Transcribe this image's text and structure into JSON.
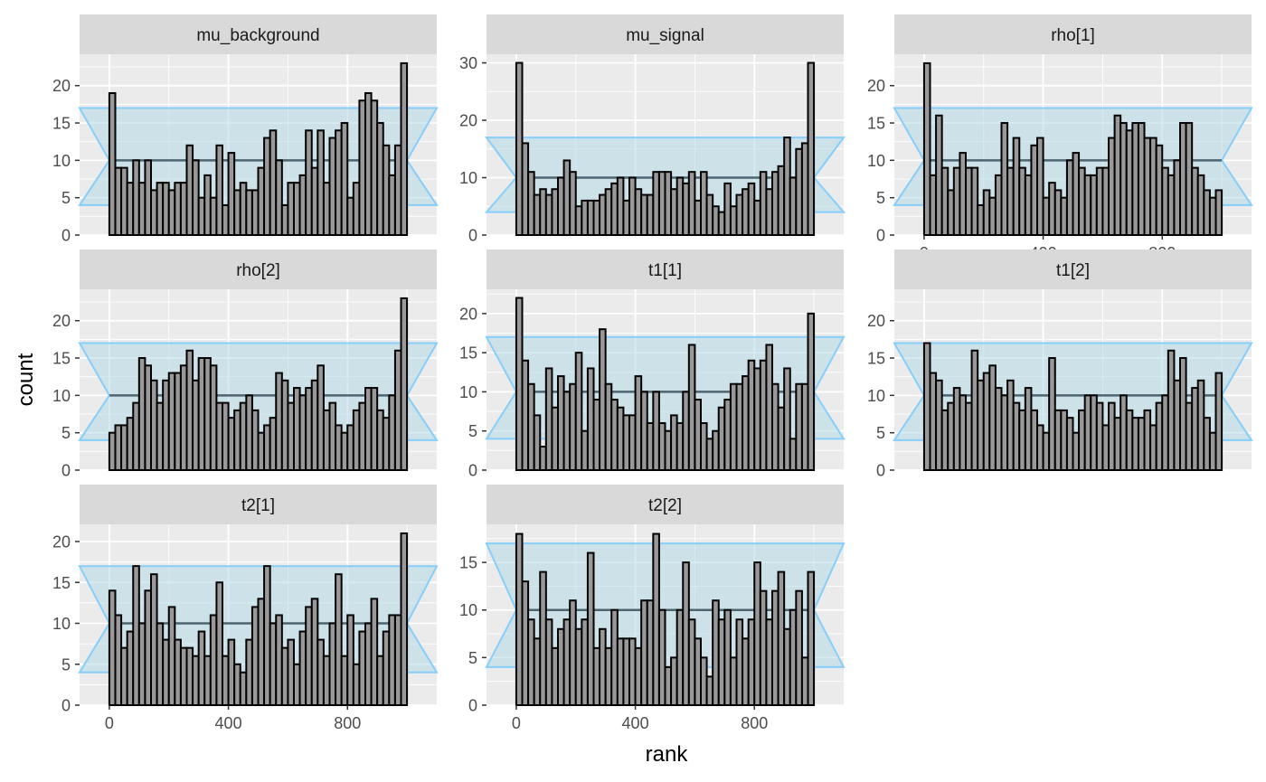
{
  "chart_data": {
    "type": "bar",
    "xlabel": "rank",
    "ylabel": "count",
    "bins": 50,
    "bin_width": 20,
    "xlim": [
      -100,
      1100
    ],
    "x_ticks": [
      "0",
      "400",
      "800"
    ],
    "x_tick_values": [
      0,
      400,
      800
    ],
    "reference": {
      "expected": 10,
      "band_low": 4,
      "band_high": 17,
      "fill": "#add8e6",
      "line": "#87cefa",
      "center_line": "#4d6570"
    },
    "bar_fill": "#999999",
    "bar_stroke": "#000000",
    "panel_bg": "#ebebeb",
    "strip_bg": "#d9d9d9",
    "panels": [
      {
        "title": "mu_background",
        "ylim": [
          0,
          24.2
        ],
        "y_ticks": [
          0,
          5,
          10,
          15,
          20
        ],
        "counts": [
          19,
          9,
          9,
          7,
          10,
          7,
          10,
          6,
          7,
          7,
          6,
          7,
          7,
          12,
          10,
          5,
          8,
          5,
          12,
          4,
          11,
          6,
          7,
          6,
          6,
          9,
          13,
          14,
          10,
          4,
          7,
          7,
          8,
          14,
          9,
          14,
          7,
          13,
          14,
          15,
          5,
          7,
          18,
          19,
          18,
          15,
          12,
          8,
          12,
          23
        ]
      },
      {
        "title": "mu_signal",
        "ylim": [
          0,
          31.5
        ],
        "y_ticks": [
          0,
          10,
          20,
          30
        ],
        "counts": [
          30,
          16,
          11,
          7,
          8,
          7,
          8,
          10,
          13,
          11,
          5,
          6,
          6,
          6,
          7,
          8,
          9,
          10,
          6,
          10,
          8,
          7,
          7,
          11,
          11,
          11,
          8,
          10,
          9,
          11,
          6,
          11,
          7,
          5,
          4,
          9,
          5,
          7,
          8,
          9,
          6,
          11,
          8,
          11,
          12,
          17,
          10,
          15,
          16,
          30
        ]
      },
      {
        "title": "rho[1]",
        "ylim": [
          0,
          24.2
        ],
        "y_ticks": [
          0,
          5,
          10,
          15,
          20
        ],
        "counts": [
          23,
          8,
          16,
          9,
          6,
          9,
          11,
          9,
          9,
          4,
          6,
          5,
          8,
          15,
          9,
          13,
          9,
          8,
          12,
          13,
          5,
          7,
          6,
          5,
          10,
          11,
          9,
          8,
          8,
          9,
          9,
          13,
          16,
          15,
          14,
          15,
          15,
          13,
          13,
          12,
          9,
          8,
          10,
          15,
          15,
          9,
          8,
          6,
          5,
          6
        ]
      },
      {
        "title": "rho[2]",
        "ylim": [
          0,
          24.2
        ],
        "y_ticks": [
          0,
          5,
          10,
          15,
          20
        ],
        "counts": [
          5,
          6,
          6,
          7,
          9,
          15,
          14,
          12,
          9,
          12,
          13,
          13,
          14,
          16,
          12,
          15,
          15,
          14,
          9,
          9,
          7,
          8,
          9,
          10,
          8,
          5,
          6,
          7,
          13,
          12,
          9,
          11,
          10,
          11,
          12,
          14,
          8,
          9,
          6,
          5,
          6,
          8,
          9,
          11,
          11,
          8,
          7,
          10,
          16,
          23
        ]
      },
      {
        "title": "t1[1]",
        "ylim": [
          0,
          23.1
        ],
        "y_ticks": [
          0,
          5,
          10,
          15,
          20
        ],
        "counts": [
          22,
          14,
          11,
          7,
          3,
          13,
          8,
          12,
          10,
          11,
          15,
          5,
          13,
          9,
          18,
          11,
          9,
          8,
          7,
          7,
          12,
          10,
          6,
          10,
          6,
          5,
          7,
          6,
          10,
          16,
          9,
          6,
          4,
          5,
          8,
          9,
          11,
          11,
          12,
          14,
          13,
          14,
          16,
          11,
          8,
          13,
          4,
          11,
          11,
          20
        ]
      },
      {
        "title": "t1[2]",
        "ylim": [
          0,
          24.2
        ],
        "y_ticks": [
          0,
          5,
          10,
          15,
          20
        ],
        "counts": [
          17,
          13,
          12,
          8,
          9,
          11,
          10,
          9,
          16,
          12,
          13,
          14,
          11,
          10,
          12,
          9,
          8,
          11,
          8,
          6,
          5,
          15,
          8,
          8,
          7,
          5,
          8,
          10,
          10,
          9,
          6,
          9,
          7,
          10,
          8,
          7,
          7,
          8,
          6,
          9,
          10,
          16,
          12,
          15,
          9,
          11,
          12,
          7,
          5,
          13
        ]
      },
      {
        "title": "t2[1]",
        "ylim": [
          0,
          22.1
        ],
        "y_ticks": [
          0,
          5,
          10,
          15,
          20
        ],
        "counts": [
          14,
          11,
          7,
          9,
          17,
          10,
          14,
          16,
          10,
          8,
          12,
          8,
          7,
          7,
          6,
          9,
          6,
          11,
          15,
          6,
          8,
          5,
          4,
          8,
          12,
          13,
          17,
          10,
          11,
          7,
          8,
          5,
          9,
          12,
          13,
          8,
          6,
          10,
          16,
          6,
          11,
          5,
          9,
          10,
          13,
          6,
          9,
          11,
          11,
          21
        ]
      },
      {
        "title": "t2[2]",
        "ylim": [
          0,
          19.0
        ],
        "y_ticks": [
          0,
          5,
          10,
          15
        ],
        "counts": [
          18,
          13,
          9,
          7,
          14,
          9,
          6,
          8,
          9,
          11,
          8,
          9,
          16,
          6,
          8,
          6,
          10,
          7,
          7,
          7,
          6,
          11,
          11,
          18,
          10,
          4,
          5,
          10,
          15,
          9,
          7,
          5,
          3,
          11,
          9,
          10,
          5,
          9,
          7,
          9,
          15,
          12,
          9,
          12,
          14,
          8,
          10,
          12,
          5,
          14
        ]
      }
    ]
  }
}
